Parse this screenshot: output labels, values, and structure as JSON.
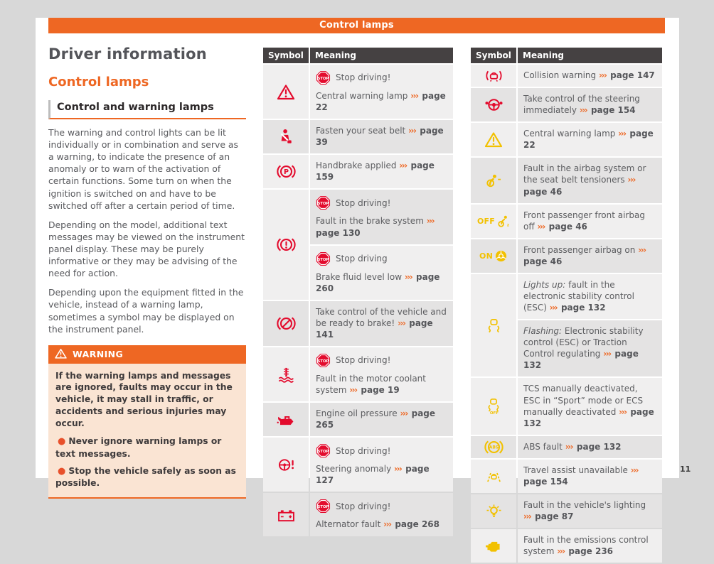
{
  "page": {
    "header_banner": "Control lamps",
    "page_number": "11"
  },
  "ref_marker": "›››",
  "colors": {
    "accent_orange": "#EE6723",
    "icon_red": "#E30B2D",
    "icon_yellow": "#F2C101",
    "table_header_dark": "#454142",
    "row_light": "#F0EFEF",
    "row_dark": "#E4E3E3",
    "warning_body_bg": "#FAE4D3",
    "bullet_red": "#E8502B"
  },
  "left_column": {
    "title": "Driver information",
    "subtitle": "Control lamps",
    "section_heading": "Control and warning lamps",
    "paragraphs": [
      "The warning and control lights can be lit individually or in combination and serve as a warning, to indicate the presence of an anomaly or to warn of the activation of certain functions. Some turn on when the ignition is switched on and have to be switched off after a certain period of time.",
      "Depending on the model, additional text messages may be viewed on the instrument panel display. These may be purely informative or they may be advising of the need for action.",
      "Depending upon the equipment fitted in the vehicle, instead of a warning lamp, sometimes a symbol may be displayed on the instrument panel."
    ],
    "warning_box": {
      "title": "WARNING",
      "body": "If the warning lamps and messages are ignored, faults may occur in the vehicle, it may stall in traffic, or accidents and serious injuries may occur.",
      "bullets": [
        "Never ignore warning lamps or text messages.",
        "Stop the vehicle safely as soon as possible."
      ]
    }
  },
  "stop_badge_label": "STOP",
  "tables": [
    {
      "headers": [
        "Symbol",
        "Meaning"
      ],
      "rows": [
        {
          "icon": "central-warning",
          "icon_shade": "light",
          "cells": [
            {
              "shade": "light",
              "stop": "Stop driving!",
              "text": "Central warning lamp",
              "ref": "page 22"
            }
          ]
        },
        {
          "icon": "seat-belt",
          "icon_shade": "dark",
          "cells": [
            {
              "shade": "dark",
              "text": "Fasten your seat belt",
              "ref": "page 39"
            }
          ]
        },
        {
          "icon": "handbrake",
          "icon_shade": "light",
          "cells": [
            {
              "shade": "light",
              "text": "Handbrake applied",
              "ref": "page 159"
            }
          ]
        },
        {
          "icon": "brake-system-fault",
          "icon_shade": "light",
          "cells": [
            {
              "shade": "dark",
              "stop": "Stop driving!",
              "text": "Fault in the brake system",
              "ref": "page 130"
            },
            {
              "shade": "light",
              "stop": "Stop driving",
              "text": "Brake fluid level low",
              "ref": "page 260"
            }
          ]
        },
        {
          "icon": "brake-assist",
          "icon_shade": "dark",
          "cells": [
            {
              "shade": "dark",
              "text": "Take control of the vehicle and be ready to brake!",
              "ref": "page 141"
            }
          ]
        },
        {
          "icon": "coolant-temperature",
          "icon_shade": "light",
          "cells": [
            {
              "shade": "light",
              "stop": "Stop driving!",
              "text": "Fault in the motor coolant system",
              "ref": "page 19"
            }
          ]
        },
        {
          "icon": "engine-oil-pressure",
          "icon_shade": "dark",
          "cells": [
            {
              "shade": "dark",
              "text": "Engine oil pressure",
              "ref": "page 265"
            }
          ]
        },
        {
          "icon": "steering-anomaly",
          "icon_shade": "light",
          "cells": [
            {
              "shade": "light",
              "stop": "Stop driving!",
              "text": "Steering anomaly",
              "ref": "page 127"
            }
          ]
        },
        {
          "icon": "battery-alternator",
          "icon_shade": "dark",
          "cells": [
            {
              "shade": "dark",
              "stop": "Stop driving!",
              "text": "Alternator fault",
              "ref": "page 268"
            }
          ]
        }
      ]
    },
    {
      "headers": [
        "Symbol",
        "Meaning"
      ],
      "rows": [
        {
          "icon": "collision-warning",
          "icon_shade": "light",
          "cells": [
            {
              "shade": "light",
              "text": "Collision warning",
              "ref": "page 147"
            }
          ]
        },
        {
          "icon": "steering-takeover",
          "icon_shade": "dark",
          "cells": [
            {
              "shade": "dark",
              "text": "Take control of the steering immediately",
              "ref": "page 154"
            }
          ]
        },
        {
          "icon": "central-warning-yellow",
          "icon_shade": "light",
          "cells": [
            {
              "shade": "light",
              "text": "Central warning lamp",
              "ref": "page 22"
            }
          ]
        },
        {
          "icon": "airbag-fault",
          "icon_shade": "dark",
          "cells": [
            {
              "shade": "dark",
              "text": "Fault in the airbag system or the seat belt tensioners",
              "ref": "page 46"
            }
          ]
        },
        {
          "icon": "airbag-off",
          "icon_text": "OFF",
          "icon_shade": "light",
          "cells": [
            {
              "shade": "light",
              "text": "Front passenger front airbag off",
              "ref": "page 46"
            }
          ]
        },
        {
          "icon": "airbag-on",
          "icon_text": "ON",
          "icon_shade": "dark",
          "cells": [
            {
              "shade": "dark",
              "text": "Front passenger airbag on",
              "ref": "page 46"
            }
          ]
        },
        {
          "icon": "esc",
          "icon_shade": "light",
          "cells": [
            {
              "shade": "light",
              "italic": "Lights up:",
              "text": " fault in the electronic stability control (ESC)",
              "ref": "page 132"
            },
            {
              "shade": "dark",
              "italic": "Flashing:",
              "text": " Electronic stability control (ESC) or Traction Control regulating",
              "ref": "page 132"
            }
          ]
        },
        {
          "icon": "esc-off",
          "icon_shade": "light",
          "cells": [
            {
              "shade": "light",
              "text": "TCS manually deactivated, ESC in “Sport” mode or ECS manually deactivated",
              "ref": "page 132"
            }
          ]
        },
        {
          "icon": "abs",
          "icon_shade": "dark",
          "cells": [
            {
              "shade": "dark",
              "text": "ABS fault",
              "ref": "page 132"
            }
          ]
        },
        {
          "icon": "travel-assist",
          "icon_shade": "light",
          "cells": [
            {
              "shade": "light",
              "text": "Travel assist unavailable",
              "ref": "page 154"
            }
          ]
        },
        {
          "icon": "lighting-fault",
          "icon_shade": "dark",
          "cells": [
            {
              "shade": "dark",
              "text": "Fault in the vehicle's lighting",
              "ref": "page 87"
            }
          ]
        },
        {
          "icon": "emissions-control",
          "icon_shade": "light",
          "cells": [
            {
              "shade": "light",
              "text": "Fault in the emissions control system",
              "ref": "page 236"
            }
          ]
        }
      ]
    }
  ]
}
